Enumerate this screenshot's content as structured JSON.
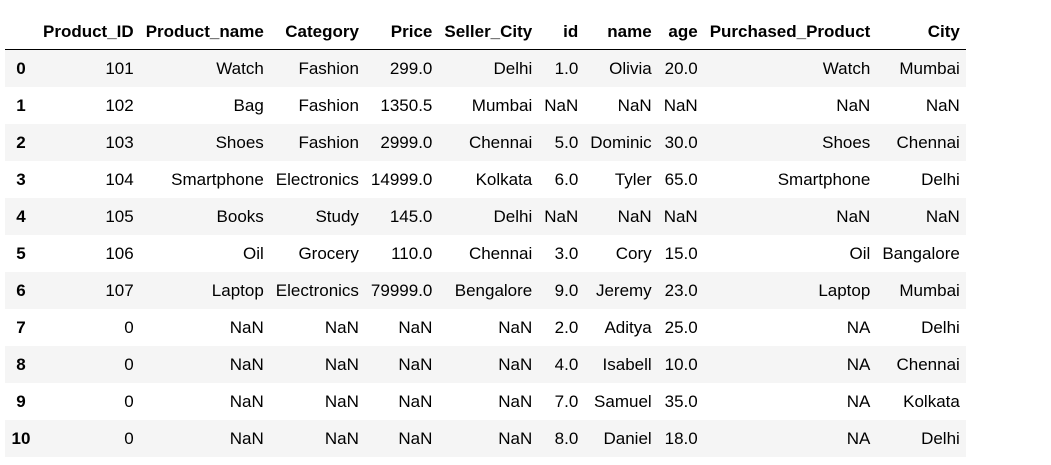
{
  "table": {
    "columns": [
      "",
      "Product_ID",
      "Product_name",
      "Category",
      "Price",
      "Seller_City",
      "id",
      "name",
      "age",
      "Purchased_Product",
      "City"
    ],
    "rows": [
      [
        "0",
        "101",
        "Watch",
        "Fashion",
        "299.0",
        "Delhi",
        "1.0",
        "Olivia",
        "20.0",
        "Watch",
        "Mumbai"
      ],
      [
        "1",
        "102",
        "Bag",
        "Fashion",
        "1350.5",
        "Mumbai",
        "NaN",
        "NaN",
        "NaN",
        "NaN",
        "NaN"
      ],
      [
        "2",
        "103",
        "Shoes",
        "Fashion",
        "2999.0",
        "Chennai",
        "5.0",
        "Dominic",
        "30.0",
        "Shoes",
        "Chennai"
      ],
      [
        "3",
        "104",
        "Smartphone",
        "Electronics",
        "14999.0",
        "Kolkata",
        "6.0",
        "Tyler",
        "65.0",
        "Smartphone",
        "Delhi"
      ],
      [
        "4",
        "105",
        "Books",
        "Study",
        "145.0",
        "Delhi",
        "NaN",
        "NaN",
        "NaN",
        "NaN",
        "NaN"
      ],
      [
        "5",
        "106",
        "Oil",
        "Grocery",
        "110.0",
        "Chennai",
        "3.0",
        "Cory",
        "15.0",
        "Oil",
        "Bangalore"
      ],
      [
        "6",
        "107",
        "Laptop",
        "Electronics",
        "79999.0",
        "Bengalore",
        "9.0",
        "Jeremy",
        "23.0",
        "Laptop",
        "Mumbai"
      ],
      [
        "7",
        "0",
        "NaN",
        "NaN",
        "NaN",
        "NaN",
        "2.0",
        "Aditya",
        "25.0",
        "NA",
        "Delhi"
      ],
      [
        "8",
        "0",
        "NaN",
        "NaN",
        "NaN",
        "NaN",
        "4.0",
        "Isabell",
        "10.0",
        "NA",
        "Chennai"
      ],
      [
        "9",
        "0",
        "NaN",
        "NaN",
        "NaN",
        "NaN",
        "7.0",
        "Samuel",
        "35.0",
        "NA",
        "Kolkata"
      ],
      [
        "10",
        "0",
        "NaN",
        "NaN",
        "NaN",
        "NaN",
        "8.0",
        "Daniel",
        "18.0",
        "NA",
        "Delhi"
      ]
    ]
  }
}
